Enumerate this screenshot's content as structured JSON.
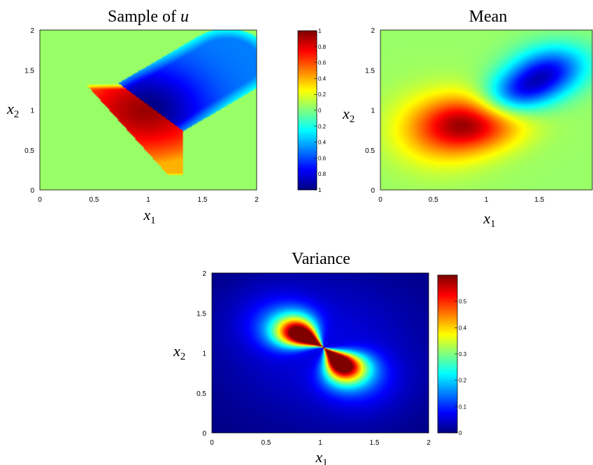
{
  "chart_data": [
    {
      "type": "heatmap",
      "title_text": "Sample of ",
      "title_var": "u",
      "xlabel": {
        "var": "x",
        "sub": "1"
      },
      "ylabel": {
        "var": "x",
        "sub": "2"
      },
      "xlim": [
        0,
        2
      ],
      "ylim": [
        0,
        2
      ],
      "xticks": [
        "0",
        "0.5",
        "1",
        "1.5",
        "2"
      ],
      "yticks": [
        "0",
        "0.5",
        "1",
        "1.5",
        "2"
      ],
      "colorbar": {
        "range": [
          -1,
          1
        ],
        "ticks": [
          "1",
          "0.8",
          "0.6",
          "0.4",
          "0.2",
          "0",
          "0.2",
          "0.4",
          "0.6",
          "0.8",
          "1"
        ]
      },
      "colormap": "jet",
      "field": "sample"
    },
    {
      "type": "heatmap",
      "title_text": "Mean",
      "xlabel": {
        "var": "x",
        "sub": "1"
      },
      "ylabel": {
        "var": "x",
        "sub": "2"
      },
      "xlim": [
        0,
        2
      ],
      "ylim": [
        0,
        2
      ],
      "xticks": [
        "0",
        "0.5",
        "1",
        "1.5"
      ],
      "yticks": [
        "0",
        "0.5",
        "1",
        "1.5",
        "2"
      ],
      "colormap": "jet",
      "field": "mean"
    },
    {
      "type": "heatmap",
      "title_text": "Variance",
      "xlabel": {
        "var": "x",
        "sub": "1"
      },
      "ylabel": {
        "var": "x",
        "sub": "2"
      },
      "xlim": [
        0,
        2
      ],
      "ylim": [
        0,
        2
      ],
      "xticks": [
        "0",
        "0.5",
        "1",
        "1.5",
        "2"
      ],
      "yticks": [
        "0",
        "0.5",
        "1",
        "1.5",
        "2"
      ],
      "colorbar": {
        "range": [
          0,
          0.6
        ],
        "ticks": [
          "0",
          "0.1",
          "0.2",
          "0.3",
          "0.4",
          "0.5"
        ],
        "tick_values": [
          0,
          0.1,
          0.2,
          0.3,
          0.4,
          0.5
        ]
      },
      "colormap": "jet",
      "field": "variance"
    }
  ]
}
